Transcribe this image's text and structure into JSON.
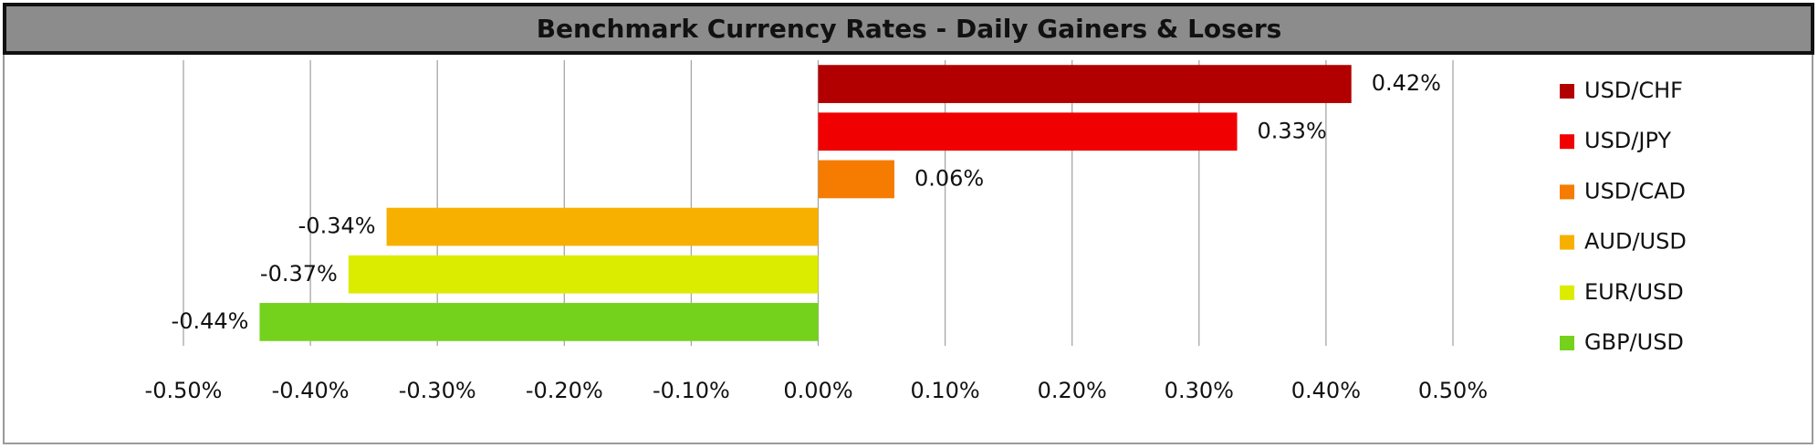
{
  "chart_data": {
    "type": "bar",
    "orientation": "horizontal",
    "title": "Benchmark Currency Rates - Daily Gainers & Losers",
    "series": [
      {
        "name": "USD/CHF",
        "color": "#b20000",
        "values": [
          0.42
        ],
        "value_labels": [
          "0.42%"
        ]
      },
      {
        "name": "USD/JPY",
        "color": "#f00000",
        "values": [
          0.33
        ],
        "value_labels": [
          "0.33%"
        ]
      },
      {
        "name": "USD/CAD",
        "color": "#f57c00",
        "values": [
          0.06
        ],
        "value_labels": [
          "0.06%"
        ]
      },
      {
        "name": "AUD/USD",
        "color": "#f8b000",
        "values": [
          -0.34
        ],
        "value_labels": [
          "-0.34%"
        ]
      },
      {
        "name": "EUR/USD",
        "color": "#dcec00",
        "values": [
          -0.37
        ],
        "value_labels": [
          "-0.37%"
        ]
      },
      {
        "name": "GBP/USD",
        "color": "#74d21c",
        "values": [
          -0.44
        ],
        "value_labels": [
          "-0.44%"
        ]
      }
    ],
    "xlim": [
      -0.5,
      0.5
    ],
    "xticks": [
      {
        "value": -0.5,
        "label": "-0.50%"
      },
      {
        "value": -0.4,
        "label": "-0.40%"
      },
      {
        "value": -0.3,
        "label": "-0.30%"
      },
      {
        "value": -0.2,
        "label": "-0.20%"
      },
      {
        "value": -0.1,
        "label": "-0.10%"
      },
      {
        "value": 0,
        "label": "0.00%"
      },
      {
        "value": 0.1,
        "label": "0.10%"
      },
      {
        "value": 0.2,
        "label": "0.20%"
      },
      {
        "value": 0.3,
        "label": "0.30%"
      },
      {
        "value": 0.4,
        "label": "0.40%"
      },
      {
        "value": 0.5,
        "label": "0.50%"
      }
    ],
    "grid": true,
    "legend": "right"
  }
}
